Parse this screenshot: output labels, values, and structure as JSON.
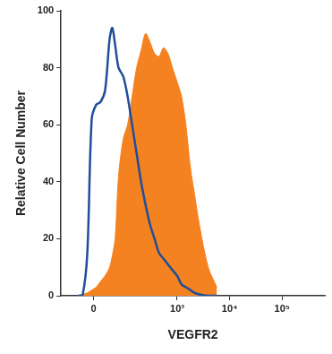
{
  "chart_data": {
    "type": "line",
    "x_label": "VEGFR2",
    "y_label": "Relative Cell Number",
    "x": [
      -37,
      -25,
      -14,
      -4,
      6,
      16,
      27,
      39,
      47,
      56,
      68,
      87,
      108,
      134,
      165,
      202,
      247,
      302,
      369,
      450,
      548,
      668,
      813,
      1000,
      1208,
      1466,
      1785,
      2170,
      2640,
      3900,
      5700
    ],
    "series": [
      {
        "type": "area",
        "color": "#f58220",
        "values": [
          0,
          0.5,
          1,
          2,
          3,
          5,
          7,
          10,
          14,
          20,
          42,
          55,
          60,
          70,
          80,
          86,
          92,
          89,
          85,
          84,
          87,
          85,
          80,
          75,
          70,
          60,
          45,
          35,
          25,
          10,
          3
        ]
      },
      {
        "type": "line",
        "color": "#1f4e9a",
        "values": [
          0,
          0.5,
          15,
          62,
          67,
          68,
          72,
          90,
          94,
          88,
          80,
          77,
          70,
          60,
          50,
          40,
          32,
          25,
          20,
          15,
          13,
          11,
          9,
          7,
          4,
          3,
          2,
          1,
          0.5,
          0,
          0
        ]
      }
    ],
    "log": "x",
    "xlim": [
      -100,
      650000
    ],
    "xticks": [
      0,
      {
        "value": 1000,
        "label": "10³"
      },
      {
        "value": 10000,
        "label": "10⁴"
      },
      {
        "value": 100000,
        "label": "10⁵"
      }
    ],
    "ylim": [
      0,
      100
    ],
    "yticks": [
      0,
      20,
      40,
      60,
      80,
      100
    ],
    "grid": false
  }
}
